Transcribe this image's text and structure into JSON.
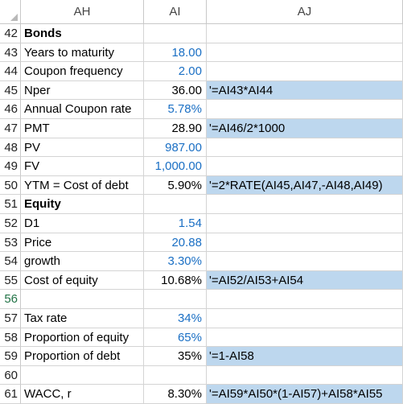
{
  "columns": [
    "AH",
    "AI",
    "AJ"
  ],
  "rows": [
    {
      "num": "42",
      "label": "Bonds",
      "bold": true,
      "value": "",
      "blue": false,
      "formula": "",
      "hl": false
    },
    {
      "num": "43",
      "label": "Years to maturity",
      "bold": false,
      "value": "18.00",
      "blue": true,
      "formula": "",
      "hl": false
    },
    {
      "num": "44",
      "label": "Coupon frequency",
      "bold": false,
      "value": "2.00",
      "blue": true,
      "formula": "",
      "hl": false
    },
    {
      "num": "45",
      "label": "Nper",
      "bold": false,
      "value": "36.00",
      "blue": false,
      "formula": "'=AI43*AI44",
      "hl": true
    },
    {
      "num": "46",
      "label": "Annual Coupon rate",
      "bold": false,
      "value": "5.78%",
      "blue": true,
      "formula": "",
      "hl": false
    },
    {
      "num": "47",
      "label": "PMT",
      "bold": false,
      "value": "28.90",
      "blue": false,
      "formula": "'=AI46/2*1000",
      "hl": true
    },
    {
      "num": "48",
      "label": "PV",
      "bold": false,
      "value": "987.00",
      "blue": true,
      "formula": "",
      "hl": false
    },
    {
      "num": "49",
      "label": "FV",
      "bold": false,
      "value": "1,000.00",
      "blue": true,
      "formula": "",
      "hl": false
    },
    {
      "num": "50",
      "label": "YTM = Cost of debt",
      "bold": false,
      "value": "5.90%",
      "blue": false,
      "formula": "'=2*RATE(AI45,AI47,-AI48,AI49)",
      "hl": true
    },
    {
      "num": "51",
      "label": "Equity",
      "bold": true,
      "value": "",
      "blue": false,
      "formula": "",
      "hl": false
    },
    {
      "num": "52",
      "label": "D1",
      "bold": false,
      "value": "1.54",
      "blue": true,
      "formula": "",
      "hl": false
    },
    {
      "num": "53",
      "label": "Price",
      "bold": false,
      "value": "20.88",
      "blue": true,
      "formula": "",
      "hl": false
    },
    {
      "num": "54",
      "label": "growth",
      "bold": false,
      "value": "3.30%",
      "blue": true,
      "formula": "",
      "hl": false
    },
    {
      "num": "55",
      "label": "Cost of equity",
      "bold": false,
      "value": "10.68%",
      "blue": false,
      "formula": "'=AI52/AI53+AI54",
      "hl": true
    },
    {
      "num": "56",
      "label": "",
      "bold": false,
      "value": "",
      "blue": false,
      "formula": "",
      "hl": false,
      "selected": true
    },
    {
      "num": "57",
      "label": "Tax rate",
      "bold": false,
      "value": "34%",
      "blue": true,
      "formula": "",
      "hl": false
    },
    {
      "num": "58",
      "label": "Proportion of equity",
      "bold": false,
      "value": "65%",
      "blue": true,
      "formula": "",
      "hl": false
    },
    {
      "num": "59",
      "label": "Proportion of debt",
      "bold": false,
      "value": "35%",
      "blue": false,
      "formula": "'=1-AI58",
      "hl": true
    },
    {
      "num": "60",
      "label": "",
      "bold": false,
      "value": "",
      "blue": false,
      "formula": "",
      "hl": false
    },
    {
      "num": "61",
      "label": "WACC, r",
      "bold": false,
      "value": "8.30%",
      "blue": false,
      "formula": "'=AI59*AI50*(1-AI57)+AI58*AI55",
      "hl": true
    }
  ]
}
